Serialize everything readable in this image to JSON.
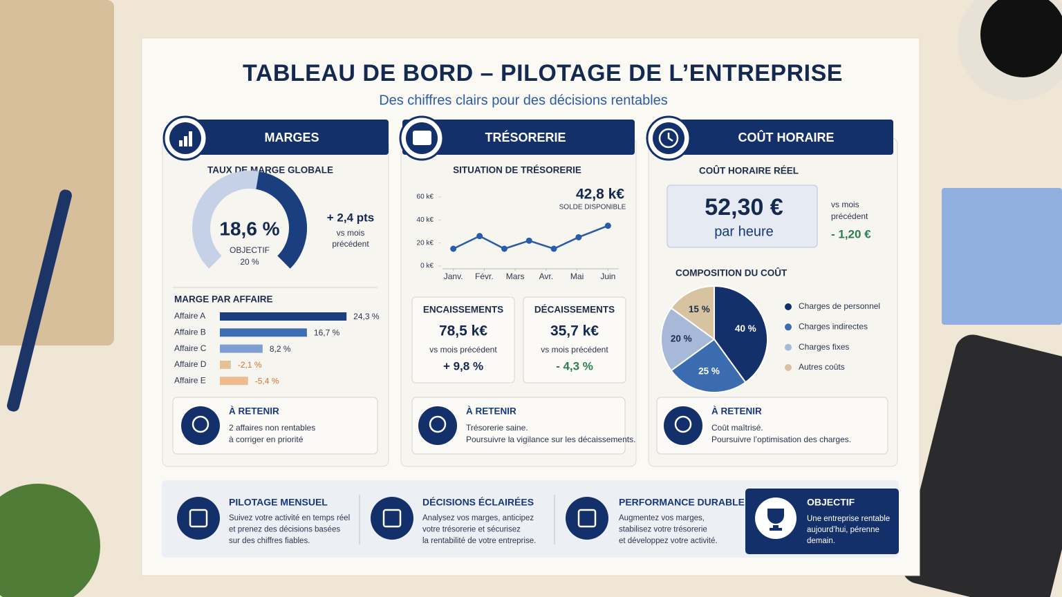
{
  "header": {
    "title": "TABLEAU DE BORD – PILOTAGE DE L’ENTREPRISE",
    "subtitle": "Des chiffres clairs pour des décisions rentables"
  },
  "panels": [
    {
      "title": "MARGES",
      "delta": "+ 2,4 pts",
      "delta_caption": [
        "vs mois",
        "précédent"
      ],
      "target_caption": "OBJECTIF",
      "target": "20 %",
      "note": {
        "title": "À RETENIR",
        "lines": [
          "2 affaires non rentables",
          "à corriger en priorité"
        ]
      }
    },
    {
      "title": "TRÉSORERIE",
      "balance": "42,8 k€",
      "balance_caption": "SOLDE DISPONIBLE",
      "cards": [
        {
          "title": "ENCAISSEMENTS",
          "value": "78,5 k€",
          "caption": "vs mois précédent",
          "delta": "+ 9,8 %"
        },
        {
          "title": "DÉCAISSEMENTS",
          "value": "35,7 k€",
          "caption": "vs mois précédent",
          "delta": "- 4,3 %"
        }
      ],
      "note": {
        "title": "À RETENIR",
        "lines": [
          "Trésorerie saine.",
          "Poursuivre la vigilance sur les décaissements."
        ]
      }
    },
    {
      "title": "COÛT HORAIRE",
      "subtitle": "COÛT HORAIRE RÉEL",
      "value": "52,30 €",
      "unit": "par heure",
      "caption": [
        "vs mois",
        "précédent"
      ],
      "delta": "- 1,20 €",
      "note": {
        "title": "À RETENIR",
        "lines": [
          "Coût maîtrisé.",
          "Poursuivre l’optimisation des charges."
        ]
      }
    }
  ],
  "chart_data": [
    {
      "type": "gauge",
      "title": "TAUX DE MARGE GLOBALE",
      "value": 18.6,
      "value_label": "18,6 %",
      "ylim": [
        0,
        40
      ]
    },
    {
      "type": "line",
      "title": "SITUATION DE TRÉSORERIE",
      "x": [
        0,
        0.85,
        1.65,
        2.45,
        3.25,
        4.05,
        5
      ],
      "series": [
        {
          "color": "#2a5ba8",
          "values": [
            15,
            26,
            15,
            22,
            15,
            25,
            35
          ]
        }
      ],
      "xlim": [
        -0.35,
        5.35
      ],
      "ylim": [
        0,
        60
      ],
      "xticks": [
        {
          "value": 0,
          "label": "Janv."
        },
        {
          "value": 1,
          "label": "Févr."
        },
        {
          "value": 2,
          "label": "Mars"
        },
        {
          "value": 3,
          "label": "Avr."
        },
        {
          "value": 4,
          "label": "Mai"
        },
        {
          "value": 5,
          "label": "Juin"
        }
      ],
      "yticks": [
        {
          "value": 0,
          "label": "0 k€"
        },
        {
          "value": 20,
          "label": "20 k€"
        },
        {
          "value": 40,
          "label": "40 k€"
        },
        {
          "value": 60,
          "label": "60 k€"
        }
      ]
    },
    {
      "type": "hbar",
      "title": "MARGE PAR AFFAIRE",
      "categories": [
        "Affaire A",
        "Affaire B",
        "Affaire C",
        "Affaire D",
        "Affaire E"
      ],
      "values": [
        24.3,
        16.7,
        8.2,
        -2.1,
        -5.4
      ],
      "value_labels": [
        "24,3 %",
        "16,7 %",
        "8,2 %",
        "-2,1 %",
        "-5,4 %"
      ],
      "colors": [
        "#1b3f7e",
        "#3f6db3",
        "#7f9fd2",
        "#e3c29a",
        "#f0bb8c"
      ],
      "xlim": [
        0,
        26
      ]
    },
    {
      "type": "pie",
      "title": "COMPOSITION DU COÛT",
      "categories": [
        "Charges de personnel",
        "Charges indirectes",
        "Charges fixes",
        "Autres coûts"
      ],
      "values": [
        40,
        25,
        20,
        15
      ],
      "value_labels": [
        "40 %",
        "25 %",
        "20 %",
        "15 %"
      ],
      "colors": [
        "#14306a",
        "#3b6cb0",
        "#a7b9d8",
        "#d8c3a0"
      ]
    }
  ],
  "footer": {
    "items": [
      {
        "title": "PILOTAGE MENSUEL",
        "lines": [
          "Suivez votre activité en temps réel",
          "et prenez des décisions basées",
          "sur des chiffres fiables."
        ]
      },
      {
        "title": "DÉCISIONS ÉCLAIRÉES",
        "lines": [
          "Analysez vos marges, anticipez",
          "votre trésorerie et sécurisez",
          "la rentabilité de votre entreprise."
        ]
      },
      {
        "title": "PERFORMANCE DURABLE",
        "lines": [
          "Augmentez vos marges,",
          "stabilisez votre trésorerie",
          "et développez votre activité."
        ]
      }
    ],
    "goal": {
      "title": "OBJECTIF",
      "lines": [
        "Une entreprise rentable",
        "aujourd’hui, pérenne",
        "demain."
      ]
    }
  }
}
